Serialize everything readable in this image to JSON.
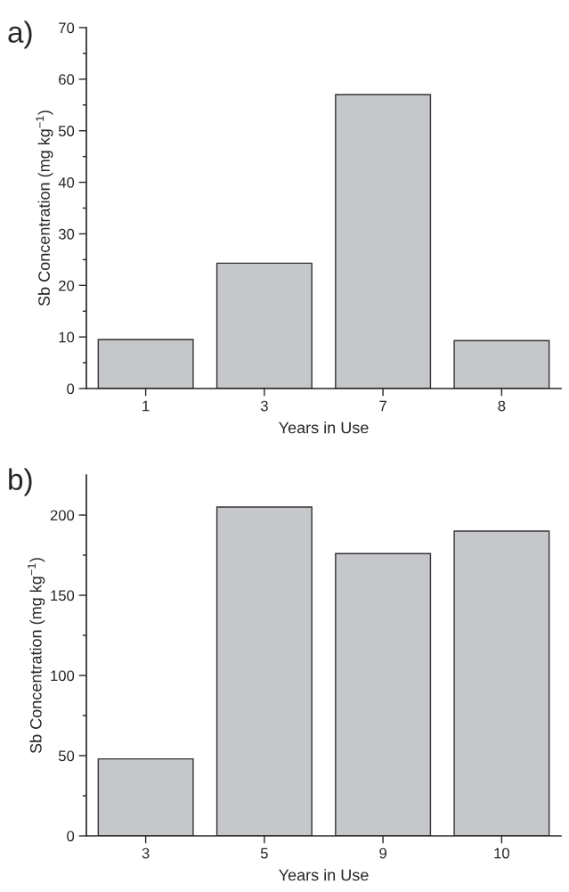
{
  "chart_data": [
    {
      "type": "bar",
      "annotations": [
        "a)"
      ],
      "xlabel": "Years in Use",
      "ylabel": "Sb Concentration (mg kg$^{−1}$)",
      "categories": [
        "1",
        "3",
        "7",
        "8"
      ],
      "values": [
        9.5,
        24.3,
        57,
        9.3
      ],
      "color": "#c5c7ca",
      "ylim": [
        0,
        70
      ],
      "yticks": [
        0,
        {
          "value": 5,
          "label": null
        },
        10,
        {
          "value": 15,
          "label": null
        },
        20,
        {
          "value": 25,
          "label": null
        },
        30,
        {
          "value": 35,
          "label": null
        },
        40,
        {
          "value": 45,
          "label": null
        },
        50,
        {
          "value": 55,
          "label": null
        },
        60,
        {
          "value": 65,
          "label": null
        },
        70
      ],
      "grid": false,
      "legend": false
    },
    {
      "type": "bar",
      "annotations": [
        "b)"
      ],
      "xlabel": "Years in Use",
      "ylabel": "Sb Concentration (mg kg$^{−1}$)",
      "categories": [
        "3",
        "5",
        "9",
        "10"
      ],
      "values": [
        48,
        205,
        176,
        190
      ],
      "color": "#c5c7ca",
      "ylim": [
        0,
        225
      ],
      "yticks": [
        0,
        {
          "value": 25,
          "label": null
        },
        50,
        {
          "value": 75,
          "label": null
        },
        100,
        {
          "value": 125,
          "label": null
        },
        150,
        {
          "value": 175,
          "label": null
        },
        200
      ],
      "grid": false,
      "legend": false
    }
  ]
}
